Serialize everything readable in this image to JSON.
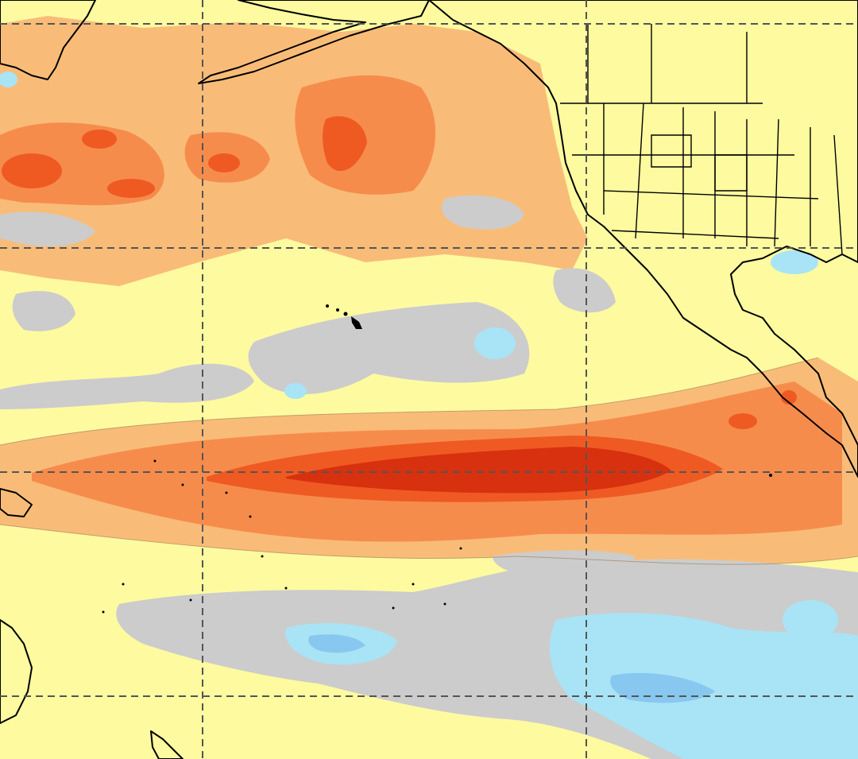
{
  "map": {
    "palette": {
      "land": "#ffffff",
      "coastline": "#000000",
      "gridline": "#555555",
      "neutral": "#cccccc",
      "cool_1": "#a8e4f5",
      "cool_2": "#88c8f0",
      "warm_1": "#fefaa0",
      "warm_2": "#f9bc78",
      "warm_3": "#f68c4c",
      "warm_4": "#ef5a22",
      "warm_5": "#d8310f"
    },
    "features": [
      "north-pacific",
      "north-america",
      "asia",
      "australia",
      "hawaiian-islands",
      "equatorial-warm-band"
    ]
  }
}
